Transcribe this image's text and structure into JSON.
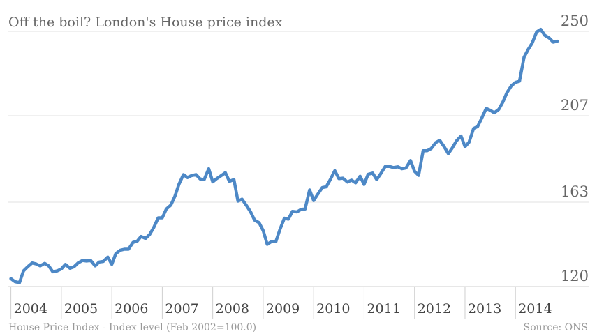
{
  "chart_data": {
    "type": "line",
    "title": "Off the boil? London's House price index",
    "footnote": "House Price Index - Index level (Feb 2002=100.0)",
    "source": "Source: ONS",
    "ylim": [
      120,
      250
    ],
    "yticks": [
      120,
      163,
      207,
      250
    ],
    "ytick_labels": [
      "120",
      "163",
      "207",
      "250"
    ],
    "xlim": [
      2003.95,
      2015.45
    ],
    "xticks": [
      2004,
      2005,
      2006,
      2007,
      2008,
      2009,
      2010,
      2011,
      2012,
      2013,
      2014
    ],
    "xtick_labels": [
      "2004",
      "2005",
      "2006",
      "2007",
      "2008",
      "2009",
      "2010",
      "2011",
      "2012",
      "2013",
      "2014"
    ],
    "grid": true,
    "line_color": "#4d88c6",
    "series": [
      {
        "x": [
          2004.0,
          2004.08,
          2004.17,
          2004.25,
          2004.33,
          2004.42,
          2004.5,
          2004.58,
          2004.67,
          2004.75,
          2004.83,
          2004.92,
          2005.0,
          2005.08,
          2005.17,
          2005.25,
          2005.33,
          2005.42,
          2005.5,
          2005.58,
          2005.67,
          2005.75,
          2005.83,
          2005.92,
          2006.0,
          2006.08,
          2006.17,
          2006.25,
          2006.33,
          2006.42,
          2006.5,
          2006.58,
          2006.67,
          2006.75,
          2006.83,
          2006.92,
          2007.0,
          2007.08,
          2007.17,
          2007.25,
          2007.33,
          2007.42,
          2007.5,
          2007.58,
          2007.67,
          2007.75,
          2007.83,
          2007.92,
          2008.0,
          2008.08,
          2008.17,
          2008.25,
          2008.33,
          2008.42,
          2008.5,
          2008.58,
          2008.67,
          2008.75,
          2008.83,
          2008.92,
          2009.0,
          2009.08,
          2009.17,
          2009.25,
          2009.33,
          2009.42,
          2009.5,
          2009.58,
          2009.67,
          2009.75,
          2009.83,
          2009.92,
          2010.0,
          2010.08,
          2010.17,
          2010.25,
          2010.33,
          2010.42,
          2010.5,
          2010.58,
          2010.67,
          2010.75,
          2010.83,
          2010.92,
          2011.0,
          2011.08,
          2011.17,
          2011.25,
          2011.33,
          2011.42,
          2011.5,
          2011.58,
          2011.67,
          2011.75,
          2011.83,
          2011.92,
          2012.0,
          2012.08,
          2012.17,
          2012.25,
          2012.33,
          2012.42,
          2012.5,
          2012.58,
          2012.67,
          2012.75,
          2012.83,
          2012.92,
          2013.0,
          2013.08,
          2013.17,
          2013.25,
          2013.33,
          2013.42,
          2013.5,
          2013.58,
          2013.67,
          2013.75,
          2013.83,
          2013.92,
          2014.0,
          2014.08,
          2014.17,
          2014.25,
          2014.33,
          2014.42,
          2014.5,
          2014.58,
          2014.67,
          2014.75,
          2014.83
        ],
        "values": [
          124,
          122.5,
          122,
          128,
          130,
          132,
          131.5,
          130.5,
          131.8,
          130.5,
          127.5,
          128,
          129,
          131.3,
          129.3,
          130,
          132,
          133.3,
          133,
          133.3,
          130.5,
          132.5,
          132.8,
          135,
          131.3,
          136.8,
          138.5,
          139,
          139,
          142.5,
          143,
          145.5,
          144.5,
          146.5,
          150,
          155,
          155,
          159.5,
          161.5,
          166,
          172,
          177,
          175.5,
          176.5,
          177,
          174.8,
          174.5,
          180,
          173.3,
          175,
          176.5,
          178,
          173.6,
          174.5,
          163.5,
          164.5,
          161.2,
          158,
          153.8,
          152.5,
          148.5,
          141.5,
          143,
          142.8,
          149,
          154.8,
          154.3,
          158.3,
          158,
          159.3,
          159.5,
          169.2,
          163.8,
          167,
          170.4,
          170.8,
          174.5,
          179,
          175,
          175.2,
          173.2,
          174.2,
          172.8,
          176.2,
          172,
          177.2,
          177.8,
          174.5,
          177.5,
          181.2,
          181.2,
          180.6,
          181,
          180,
          180.4,
          184.2,
          178.7,
          176.6,
          189.2,
          189.2,
          190.3,
          193.3,
          194.5,
          191.5,
          187.7,
          190.7,
          194.2,
          196.7,
          191.3,
          193.5,
          200.5,
          201.5,
          205.7,
          210.7,
          209.8,
          208.5,
          210.3,
          214,
          218.7,
          222.3,
          224,
          224.6,
          236.8,
          240.7,
          244,
          249.7,
          251,
          248,
          246.6,
          244.5,
          245
        ]
      }
    ]
  }
}
